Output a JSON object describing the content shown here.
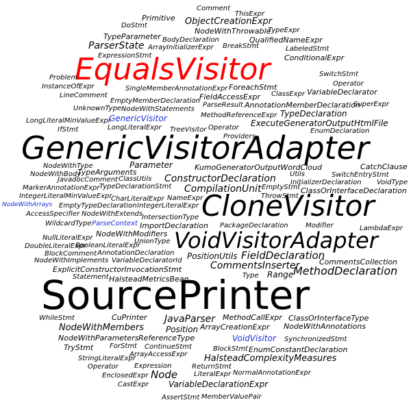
{
  "colors": {
    "default": "#000000",
    "highlight_red": "#ff0000",
    "highlight_blue": "#1a2fd6",
    "background": "#ffffff"
  },
  "words": {
    "comment": "Comment",
    "primitive": "Primitive",
    "this_expr": "ThisExpr",
    "do_stmt": "DoStmt",
    "object_creation_expr": "ObjectCreationExpr",
    "node_with_throwable": "NodeWithThrowable",
    "type_expr": "TypeExpr",
    "type_parameter": "TypeParameter",
    "body_declaration": "BodyDeclaration",
    "qualified_name_expr": "QualifiedNameExpr",
    "parser_state": "ParserState",
    "array_initializer_expr": "ArrayInitializerExpr",
    "break_stmt": "BreakStmt",
    "labeled_stmt": "LabeledStmt",
    "expression_stmt": "ExpressionStmt",
    "conditional_expr": "ConditionalExpr",
    "equals_visitor": "EqualsVisitor",
    "switch_stmt": "SwitchStmt",
    "problem": "Problem",
    "operator_1": "Operator",
    "instance_of_expr": "InstanceOfExpr",
    "foreach_stmt": "ForeachStmt",
    "single_member_annotation_expr": "SingleMemberAnnotationExpr",
    "class_expr": "ClassExpr",
    "variable_declarator": "VariableDeclarator",
    "line_comment": "LineComment",
    "field_access_expr": "FieldAccessExpr",
    "empty_member_declaration": "EmptyMemberDeclaration",
    "parse_result": "ParseResult",
    "annotation_member_declaration": "AnnotationMemberDeclaration",
    "super_expr": "SuperExpr",
    "unknown_type": "UnknownType",
    "node_with_statements": "NodeWithStatements",
    "type_declaration": "TypeDeclaration",
    "method_reference_expr": "MethodReferenceExpr",
    "long_literal_min_value_expr": "LongLiteralMinValueExpr",
    "generic_visitor": "GenericVisitor",
    "execute_generator_output_html_file": "ExecuteGeneratorOutputHtmlFile",
    "if_stmt": "IfStmt",
    "long_literal_expr": "LongLiteralExpr",
    "tree_visitor": "TreeVisitor",
    "operator_2": "Operator",
    "enum_declaration": "EnumDeclaration",
    "providers": "Providers",
    "generic_visitor_adapter": "GenericVisitorAdapter",
    "node_with_type": "NodeWithType",
    "kumo_generator_output_word_cloud": "KumoGeneratorOutputWordCloud",
    "parameter": "Parameter",
    "catch_clause": "CatchClause",
    "node_with_body": "NodeWithBody",
    "type_arguments": "TypeArguments",
    "utils": "Utils",
    "switch_entry_stmt": "SwitchEntryStmt",
    "javadoc_comment": "JavadocComment",
    "class_utils": "ClassUtils",
    "constructor_declaration": "ConstructorDeclaration",
    "initializer_declaration": "InitializerDeclaration",
    "void_type": "VoidType",
    "marker_annotation_expr": "MarkerAnnotationExpr",
    "type_declaration_stmt": "TypeDeclarationStmt",
    "compilation_unit": "CompilationUnit",
    "empty_stmt": "EmptyStmt",
    "class_or_interface_declaration": "ClassOrInterfaceDeclaration",
    "integer_literal_min_value_expr": "IntegerLiteralMinValueExpr",
    "char_literal_expr": "CharLiteralExpr",
    "name_expr": "NameExpr",
    "throw_stmt": "ThrowStmt",
    "clone_visitor": "CloneVisitor",
    "node_with_arrays": "NodeWithArrays",
    "empty_type_declaration": "EmptyTypeDeclaration",
    "integer_literal_expr": "IntegerLiteralExpr",
    "access_specifier": "AccessSpecifier",
    "node_with_extends": "NodeWithExtends",
    "intersection_type": "IntersectionType",
    "wildcard_type": "WildcardType",
    "parse_context": "ParseContext",
    "import_declaration": "ImportDeclaration",
    "package_declaration": "PackageDeclaration",
    "modifier": "Modifier",
    "lambda_expr": "LambdaExpr",
    "node_with_modifiers": "NodeWithModifiers",
    "null_literal_expr": "NullLiteralExpr",
    "void_visitor_adapter": "VoidVisitorAdapter",
    "union_type": "UnionType",
    "double_literal_expr": "DoubleLiteralExpr",
    "boolean_literal_expr": "BooleanLiteralExpr",
    "block_comment": "BlockComment",
    "annotation_declaration": "AnnotationDeclaration",
    "position_utils": "PositionUtils",
    "field_declaration": "FieldDeclaration",
    "node_with_implements": "NodeWithImplements",
    "variable_declarator_id": "VariableDeclaratorId",
    "comments_collection": "CommentsCollection",
    "comments_inserter": "CommentsInserter",
    "explicit_constructor_invocation_stmt": "ExplicitConstructorInvocationStmt",
    "method_declaration": "MethodDeclaration",
    "statement": "Statement",
    "halstead_metrics_bean": "HalsteadMetricsBean",
    "type": "Type",
    "range": "Range",
    "source_printer": "SourcePrinter",
    "while_stmt": "WhileStmt",
    "cu_printer": "CuPrinter",
    "method_call_expr": "MethodCallExpr",
    "class_or_interface_type": "ClassOrInterfaceType",
    "java_parser": "JavaParser",
    "node_with_members": "NodeWithMembers",
    "array_creation_expr": "ArrayCreationExpr",
    "node_with_annotations": "NodeWithAnnotations",
    "position": "Position",
    "node_with_parameters": "NodeWithParameters",
    "reference_type": "ReferenceType",
    "void_visitor": "VoidVisitor",
    "synchronized_stmt": "SynchronizedStmt",
    "try_stmt": "TryStmt",
    "for_stmt": "ForStmt",
    "continue_stmt": "ContinueStmt",
    "block_stmt": "BlockStmt",
    "enum_constant_declaration": "EnumConstantDeclaration",
    "array_access_expr": "ArrayAccessExpr",
    "string_literal_expr": "StringLiteralExpr",
    "halstead_complexity_measures": "HalsteadComplexityMeasures",
    "operator_3": "Operator",
    "expression": "Expression",
    "return_stmt": "ReturnStmt",
    "enclosed_expr": "EnclosedExpr",
    "node": "Node",
    "literal_expr": "LiteralExpr",
    "normal_annotation_expr": "NormalAnnotationExpr",
    "cast_expr": "CastExpr",
    "variable_declaration_expr": "VariableDeclarationExpr",
    "assert_stmt": "AssertStmt",
    "member_value_pair": "MemberValuePair"
  }
}
